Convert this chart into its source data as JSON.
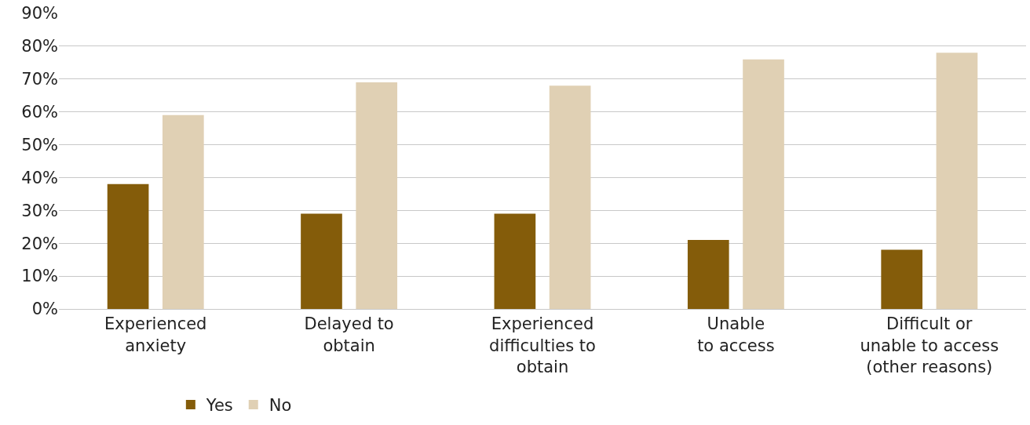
{
  "chart_data": {
    "type": "bar",
    "categories": [
      "Experienced\nanxiety",
      "Delayed to\nobtain",
      "Experienced\ndifficulties to\nobtain",
      "Unable\nto access",
      "Difficult or\nunable to access\n(other reasons)"
    ],
    "series": [
      {
        "name": "Yes",
        "color": "#845c0a",
        "values": [
          38,
          29,
          29,
          21,
          18
        ]
      },
      {
        "name": "No",
        "color": "#e0d0b4",
        "values": [
          59,
          69,
          68,
          76,
          78
        ]
      }
    ],
    "ylim": [
      0,
      90
    ],
    "yticks": [
      {
        "value": 0,
        "label": "0%"
      },
      {
        "value": 10,
        "label": "10%"
      },
      {
        "value": 20,
        "label": "20%"
      },
      {
        "value": 30,
        "label": "30%"
      },
      {
        "value": 40,
        "label": "40%"
      },
      {
        "value": 50,
        "label": "50%"
      },
      {
        "value": 60,
        "label": "60%"
      },
      {
        "value": 70,
        "label": "70%"
      },
      {
        "value": 80,
        "label": "80%"
      },
      {
        "value": 90,
        "label": "90%"
      }
    ],
    "grid": "y",
    "legend": "bottom left"
  }
}
